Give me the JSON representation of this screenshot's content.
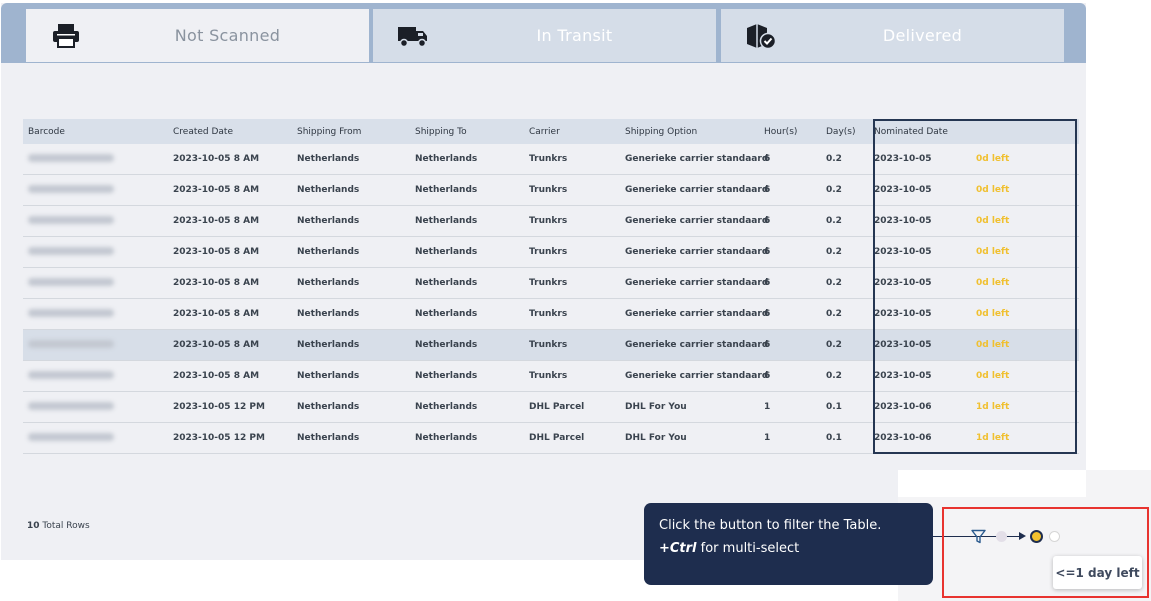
{
  "tabs": [
    {
      "label": "Not Scanned",
      "icon": "printer-icon",
      "active": true
    },
    {
      "label": "In Transit",
      "icon": "truck-icon",
      "active": false
    },
    {
      "label": "Delivered",
      "icon": "package-check-icon",
      "active": false
    }
  ],
  "table": {
    "columns": [
      "Barcode",
      "Created Date",
      "Shipping From",
      "Shipping To",
      "Carrier",
      "Shipping Option",
      "Hour(s)",
      "Day(s)",
      "Nominated Date"
    ],
    "rows": [
      {
        "created": "2023-10-05 8 AM",
        "from": "Netherlands",
        "to": "Netherlands",
        "carrier": "Trunkrs",
        "option": "Generieke carrier standaard",
        "hours": "6",
        "days": "0.2",
        "nominated": "2023-10-05",
        "left": "0d left"
      },
      {
        "created": "2023-10-05 8 AM",
        "from": "Netherlands",
        "to": "Netherlands",
        "carrier": "Trunkrs",
        "option": "Generieke carrier standaard",
        "hours": "6",
        "days": "0.2",
        "nominated": "2023-10-05",
        "left": "0d left"
      },
      {
        "created": "2023-10-05 8 AM",
        "from": "Netherlands",
        "to": "Netherlands",
        "carrier": "Trunkrs",
        "option": "Generieke carrier standaard",
        "hours": "6",
        "days": "0.2",
        "nominated": "2023-10-05",
        "left": "0d left"
      },
      {
        "created": "2023-10-05 8 AM",
        "from": "Netherlands",
        "to": "Netherlands",
        "carrier": "Trunkrs",
        "option": "Generieke carrier standaard",
        "hours": "6",
        "days": "0.2",
        "nominated": "2023-10-05",
        "left": "0d left"
      },
      {
        "created": "2023-10-05 8 AM",
        "from": "Netherlands",
        "to": "Netherlands",
        "carrier": "Trunkrs",
        "option": "Generieke carrier standaard",
        "hours": "6",
        "days": "0.2",
        "nominated": "2023-10-05",
        "left": "0d left"
      },
      {
        "created": "2023-10-05 8 AM",
        "from": "Netherlands",
        "to": "Netherlands",
        "carrier": "Trunkrs",
        "option": "Generieke carrier standaard",
        "hours": "6",
        "days": "0.2",
        "nominated": "2023-10-05",
        "left": "0d left"
      },
      {
        "created": "2023-10-05 8 AM",
        "from": "Netherlands",
        "to": "Netherlands",
        "carrier": "Trunkrs",
        "option": "Generieke carrier standaard",
        "hours": "6",
        "days": "0.2",
        "nominated": "2023-10-05",
        "left": "0d left",
        "highlighted": true
      },
      {
        "created": "2023-10-05 8 AM",
        "from": "Netherlands",
        "to": "Netherlands",
        "carrier": "Trunkrs",
        "option": "Generieke carrier standaard",
        "hours": "6",
        "days": "0.2",
        "nominated": "2023-10-05",
        "left": "0d left"
      },
      {
        "created": "2023-10-05 12 PM",
        "from": "Netherlands",
        "to": "Netherlands",
        "carrier": "DHL Parcel",
        "option": "DHL For You",
        "hours": "1",
        "days": "0.1",
        "nominated": "2023-10-06",
        "left": "1d left"
      },
      {
        "created": "2023-10-05 12 PM",
        "from": "Netherlands",
        "to": "Netherlands",
        "carrier": "DHL Parcel",
        "option": "DHL For You",
        "hours": "1",
        "days": "0.1",
        "nominated": "2023-10-06",
        "left": "1d left"
      }
    ]
  },
  "footer": {
    "total_count": "10",
    "total_label": "Total Rows"
  },
  "tooltip": {
    "line1": "Click the button to filter the Table.",
    "ctrl": "+Ctrl",
    "line2_rest": "for multi-select"
  },
  "filter": {
    "icon": "filter-icon",
    "dots": [
      "grey",
      "yellow-selected",
      "empty"
    ],
    "hint": "<=1 day left"
  },
  "colors": {
    "tabbar": "#9fb4cf",
    "accent_yellow": "#f2c12e",
    "navy": "#1e2d4e",
    "highlight_red": "#e8332f",
    "left_text": "#f0c030"
  }
}
